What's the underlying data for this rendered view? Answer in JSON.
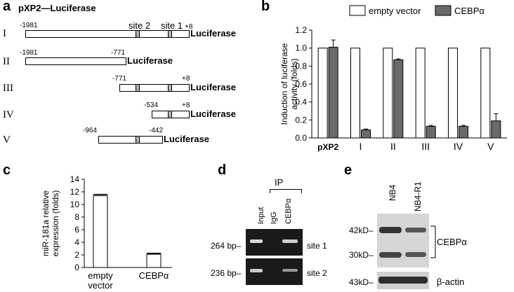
{
  "panels": {
    "a": {
      "letter": "a",
      "title": "pXP2—Luciferase",
      "site2": "site 2",
      "site1": "site 1",
      "luciferase": "Luciferase",
      "constructs": [
        {
          "roman": "I",
          "left": "-1981",
          "right": "+8"
        },
        {
          "roman": "II",
          "left": "-1981",
          "right": "-771"
        },
        {
          "roman": "III",
          "left": "-771",
          "right": "+8"
        },
        {
          "roman": "IV",
          "left": "-534",
          "right": "+8"
        },
        {
          "roman": "V",
          "left": "-964",
          "right": "-442"
        }
      ]
    },
    "b": {
      "letter": "b"
    },
    "c": {
      "letter": "c"
    },
    "d": {
      "letter": "d",
      "ip": "IP",
      "lanes": [
        "Input",
        "IgG",
        "CEBPα"
      ],
      "rows": [
        {
          "size": "264 bp–",
          "site": "site 1"
        },
        {
          "size": "236 bp–",
          "site": "site 2"
        }
      ]
    },
    "e": {
      "letter": "e",
      "lanes": [
        "NB4",
        "NB4-R1"
      ],
      "markers": [
        "42kD–",
        "30kD–",
        "43kD–"
      ],
      "cebpa": "CEBPα",
      "actin": "β-actin"
    }
  },
  "chart_data": [
    {
      "type": "bar",
      "panel": "b",
      "categories": [
        "pXP2",
        "I",
        "II",
        "III",
        "IV",
        "V"
      ],
      "series": [
        {
          "name": "empty vector",
          "values": [
            1.0,
            1.0,
            1.0,
            1.0,
            1.0,
            1.0
          ],
          "color": "#ffffff"
        },
        {
          "name": "CEBPα",
          "values": [
            1.01,
            0.09,
            0.87,
            0.13,
            0.13,
            0.19
          ],
          "errors": [
            0.08,
            0.01,
            0.01,
            0.01,
            0.01,
            0.08
          ],
          "color": "#6a6a6a"
        }
      ],
      "ylabel": "Induction of luciferase activity (folds)",
      "ylim": [
        0,
        1.2
      ],
      "yticks": [
        "0.0",
        "0.2",
        "0.4",
        "0.6",
        "0.8",
        "1.0",
        "1.2"
      ],
      "legend": "top"
    },
    {
      "type": "bar",
      "panel": "c",
      "categories": [
        "empty vector",
        "CEBPα"
      ],
      "values": [
        11.4,
        2.1
      ],
      "errors": [
        0.2,
        0.15
      ],
      "ylabel": "miR-181a relative expression (folds)",
      "ylim": [
        0,
        14
      ],
      "yticks": [
        "0",
        "2",
        "4",
        "6",
        "8",
        "10",
        "12",
        "14"
      ]
    }
  ]
}
